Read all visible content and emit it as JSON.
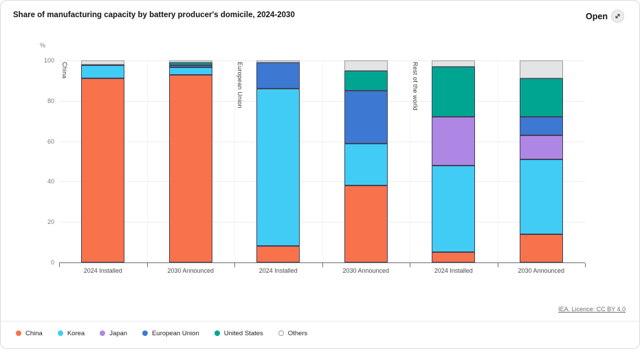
{
  "header": {
    "title": "Share of manufacturing capacity by battery producer's domicile, 2024-2030",
    "open_label": "Open",
    "open_icon": "expand-diagonal-arrow"
  },
  "footer": {
    "source_link": "IEA. Licence: CC BY 4.0"
  },
  "legend": {
    "items": [
      {
        "label": "China",
        "color": "#f8724c"
      },
      {
        "label": "Korea",
        "color": "#40ccf5"
      },
      {
        "label": "Japan",
        "color": "#ae87e4"
      },
      {
        "label": "European Union",
        "color": "#3d78d2"
      },
      {
        "label": "United States",
        "color": "#00a592"
      },
      {
        "label": "Others",
        "color": "#ffffff",
        "ring": "#9a9a9a"
      }
    ]
  },
  "chart_data": {
    "type": "bar",
    "subtype": "stacked-percentage",
    "title": "Share of manufacturing capacity by battery producer's domicile, 2024-2030",
    "unit_label": "%",
    "ylim": [
      0,
      100
    ],
    "yticks": [
      0,
      20,
      40,
      60,
      80,
      100
    ],
    "grid": true,
    "legend_position": "bottom",
    "series_order": [
      "China",
      "Korea",
      "Japan",
      "European Union",
      "United States",
      "Others"
    ],
    "colors": {
      "China": "#f8724c",
      "Korea": "#40ccf5",
      "Japan": "#ae87e4",
      "European Union": "#3d78d2",
      "United States": "#00a592",
      "Others": "#e4e4e4"
    },
    "segment_border": "#43435a",
    "others_border": "#9a9a9a",
    "groups": [
      {
        "name": "China",
        "bars": [
          {
            "label": "2024 Installed",
            "values": {
              "China": 91,
              "Korea": 6.5,
              "Japan": 0.5,
              "European Union": 0,
              "United States": 0,
              "Others": 2
            }
          },
          {
            "label": "2030 Announced",
            "values": {
              "China": 93,
              "Korea": 3.5,
              "Japan": 0,
              "European Union": 1,
              "United States": 1.5,
              "Others": 1
            }
          }
        ]
      },
      {
        "name": "European Union",
        "bars": [
          {
            "label": "2024 Installed",
            "values": {
              "China": 8,
              "Korea": 78,
              "Japan": 0,
              "European Union": 13,
              "United States": 0,
              "Others": 1
            }
          },
          {
            "label": "2030 Announced",
            "values": {
              "China": 38,
              "Korea": 21,
              "Japan": 0,
              "European Union": 26,
              "United States": 10,
              "Others": 5
            }
          }
        ]
      },
      {
        "name": "Rest of the world",
        "bars": [
          {
            "label": "2024 Installed",
            "values": {
              "China": 5,
              "Korea": 43,
              "Japan": 24,
              "European Union": 0,
              "United States": 25,
              "Others": 3
            }
          },
          {
            "label": "2030 Announced",
            "values": {
              "China": 14,
              "Korea": 37,
              "Japan": 12,
              "European Union": 9,
              "United States": 19,
              "Others": 9
            }
          }
        ]
      }
    ]
  }
}
